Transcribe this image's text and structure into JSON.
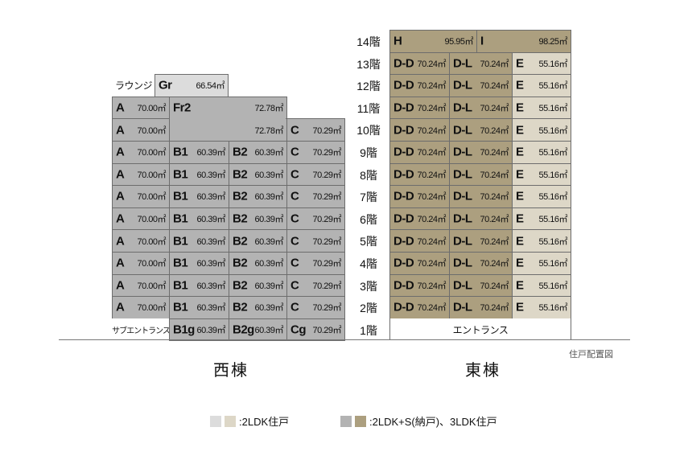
{
  "colors": {
    "west_2ldk": "#dcdcdc",
    "east_2ldk": "#ddd7c7",
    "west_3ldk": "#b3b3b3",
    "east_3ldk": "#ac9f7f",
    "blank": "#ffffff"
  },
  "floors": [
    "14階",
    "13階",
    "12階",
    "11階",
    "10階",
    "9階",
    "8階",
    "7階",
    "6階",
    "5階",
    "4階",
    "3階",
    "2階",
    "1階"
  ],
  "west_title": "西棟",
  "east_title": "東棟",
  "caption": "住戸配置図",
  "west": [
    {
      "floor": "12階",
      "units": [
        {
          "label": "ラウンジ",
          "type": "blank"
        },
        {
          "code": "Gr",
          "area": "66.54㎡",
          "type": "west_2ldk"
        }
      ]
    },
    {
      "floor": "11階",
      "units": [
        {
          "code": "A",
          "area": "70.00㎡",
          "type": "west_3ldk"
        },
        {
          "code": "Fr2",
          "area": "72.78㎡",
          "type": "west_3ldk"
        }
      ]
    },
    {
      "floor": "10階",
      "units": [
        {
          "code": "A",
          "area": "70.00㎡",
          "type": "west_3ldk"
        },
        {
          "code": "",
          "area": "72.78㎡",
          "type": "west_3ldk"
        },
        {
          "code": "C",
          "area": "70.29㎡",
          "type": "west_3ldk"
        }
      ]
    },
    {
      "floor": "9階",
      "units": [
        {
          "code": "A",
          "area": "70.00㎡",
          "type": "west_3ldk"
        },
        {
          "code": "B1",
          "area": "60.39㎡",
          "type": "west_3ldk"
        },
        {
          "code": "B2",
          "area": "60.39㎡",
          "type": "west_3ldk"
        },
        {
          "code": "C",
          "area": "70.29㎡",
          "type": "west_3ldk"
        }
      ]
    },
    {
      "floor": "8階",
      "units": [
        {
          "code": "A",
          "area": "70.00㎡",
          "type": "west_3ldk"
        },
        {
          "code": "B1",
          "area": "60.39㎡",
          "type": "west_3ldk"
        },
        {
          "code": "B2",
          "area": "60.39㎡",
          "type": "west_3ldk"
        },
        {
          "code": "C",
          "area": "70.29㎡",
          "type": "west_3ldk"
        }
      ]
    },
    {
      "floor": "7階",
      "units": [
        {
          "code": "A",
          "area": "70.00㎡",
          "type": "west_3ldk"
        },
        {
          "code": "B1",
          "area": "60.39㎡",
          "type": "west_3ldk"
        },
        {
          "code": "B2",
          "area": "60.39㎡",
          "type": "west_3ldk"
        },
        {
          "code": "C",
          "area": "70.29㎡",
          "type": "west_3ldk"
        }
      ]
    },
    {
      "floor": "6階",
      "units": [
        {
          "code": "A",
          "area": "70.00㎡",
          "type": "west_3ldk"
        },
        {
          "code": "B1",
          "area": "60.39㎡",
          "type": "west_3ldk"
        },
        {
          "code": "B2",
          "area": "60.39㎡",
          "type": "west_3ldk"
        },
        {
          "code": "C",
          "area": "70.29㎡",
          "type": "west_3ldk"
        }
      ]
    },
    {
      "floor": "5階",
      "units": [
        {
          "code": "A",
          "area": "70.00㎡",
          "type": "west_3ldk"
        },
        {
          "code": "B1",
          "area": "60.39㎡",
          "type": "west_3ldk"
        },
        {
          "code": "B2",
          "area": "60.39㎡",
          "type": "west_3ldk"
        },
        {
          "code": "C",
          "area": "70.29㎡",
          "type": "west_3ldk"
        }
      ]
    },
    {
      "floor": "4階",
      "units": [
        {
          "code": "A",
          "area": "70.00㎡",
          "type": "west_3ldk"
        },
        {
          "code": "B1",
          "area": "60.39㎡",
          "type": "west_3ldk"
        },
        {
          "code": "B2",
          "area": "60.39㎡",
          "type": "west_3ldk"
        },
        {
          "code": "C",
          "area": "70.29㎡",
          "type": "west_3ldk"
        }
      ]
    },
    {
      "floor": "3階",
      "units": [
        {
          "code": "A",
          "area": "70.00㎡",
          "type": "west_3ldk"
        },
        {
          "code": "B1",
          "area": "60.39㎡",
          "type": "west_3ldk"
        },
        {
          "code": "B2",
          "area": "60.39㎡",
          "type": "west_3ldk"
        },
        {
          "code": "C",
          "area": "70.29㎡",
          "type": "west_3ldk"
        }
      ]
    },
    {
      "floor": "2階",
      "units": [
        {
          "code": "A",
          "area": "70.00㎡",
          "type": "west_3ldk"
        },
        {
          "code": "B1",
          "area": "60.39㎡",
          "type": "west_3ldk"
        },
        {
          "code": "B2",
          "area": "60.39㎡",
          "type": "west_3ldk"
        },
        {
          "code": "C",
          "area": "70.29㎡",
          "type": "west_3ldk"
        }
      ]
    },
    {
      "floor": "1階",
      "units": [
        {
          "label": "サブエントランス",
          "type": "blank"
        },
        {
          "code": "B1g",
          "area": "60.39㎡",
          "type": "west_3ldk"
        },
        {
          "code": "B2g",
          "area": "60.39㎡",
          "type": "west_3ldk"
        },
        {
          "code": "Cg",
          "area": "70.29㎡",
          "type": "west_3ldk"
        }
      ]
    }
  ],
  "east": [
    {
      "floor": "14階",
      "units": [
        {
          "code": "H",
          "area": "95.95㎡",
          "type": "east_3ldk"
        },
        {
          "code": "I",
          "area": "98.25㎡",
          "type": "east_3ldk"
        }
      ]
    },
    {
      "floor": "13階",
      "units": [
        {
          "code": "D-D",
          "area": "70.24㎡",
          "type": "east_3ldk"
        },
        {
          "code": "D-L",
          "area": "70.24㎡",
          "type": "east_3ldk"
        },
        {
          "code": "E",
          "area": "55.16㎡",
          "type": "east_2ldk"
        }
      ]
    },
    {
      "floor": "12階",
      "units": [
        {
          "code": "D-D",
          "area": "70.24㎡",
          "type": "east_3ldk"
        },
        {
          "code": "D-L",
          "area": "70.24㎡",
          "type": "east_3ldk"
        },
        {
          "code": "E",
          "area": "55.16㎡",
          "type": "east_2ldk"
        }
      ]
    },
    {
      "floor": "11階",
      "units": [
        {
          "code": "D-D",
          "area": "70.24㎡",
          "type": "east_3ldk"
        },
        {
          "code": "D-L",
          "area": "70.24㎡",
          "type": "east_3ldk"
        },
        {
          "code": "E",
          "area": "55.16㎡",
          "type": "east_2ldk"
        }
      ]
    },
    {
      "floor": "10階",
      "units": [
        {
          "code": "D-D",
          "area": "70.24㎡",
          "type": "east_3ldk"
        },
        {
          "code": "D-L",
          "area": "70.24㎡",
          "type": "east_3ldk"
        },
        {
          "code": "E",
          "area": "55.16㎡",
          "type": "east_2ldk"
        }
      ]
    },
    {
      "floor": "9階",
      "units": [
        {
          "code": "D-D",
          "area": "70.24㎡",
          "type": "east_3ldk"
        },
        {
          "code": "D-L",
          "area": "70.24㎡",
          "type": "east_3ldk"
        },
        {
          "code": "E",
          "area": "55.16㎡",
          "type": "east_2ldk"
        }
      ]
    },
    {
      "floor": "8階",
      "units": [
        {
          "code": "D-D",
          "area": "70.24㎡",
          "type": "east_3ldk"
        },
        {
          "code": "D-L",
          "area": "70.24㎡",
          "type": "east_3ldk"
        },
        {
          "code": "E",
          "area": "55.16㎡",
          "type": "east_2ldk"
        }
      ]
    },
    {
      "floor": "7階",
      "units": [
        {
          "code": "D-D",
          "area": "70.24㎡",
          "type": "east_3ldk"
        },
        {
          "code": "D-L",
          "area": "70.24㎡",
          "type": "east_3ldk"
        },
        {
          "code": "E",
          "area": "55.16㎡",
          "type": "east_2ldk"
        }
      ]
    },
    {
      "floor": "6階",
      "units": [
        {
          "code": "D-D",
          "area": "70.24㎡",
          "type": "east_3ldk"
        },
        {
          "code": "D-L",
          "area": "70.24㎡",
          "type": "east_3ldk"
        },
        {
          "code": "E",
          "area": "55.16㎡",
          "type": "east_2ldk"
        }
      ]
    },
    {
      "floor": "5階",
      "units": [
        {
          "code": "D-D",
          "area": "70.24㎡",
          "type": "east_3ldk"
        },
        {
          "code": "D-L",
          "area": "70.24㎡",
          "type": "east_3ldk"
        },
        {
          "code": "E",
          "area": "55.16㎡",
          "type": "east_2ldk"
        }
      ]
    },
    {
      "floor": "4階",
      "units": [
        {
          "code": "D-D",
          "area": "70.24㎡",
          "type": "east_3ldk"
        },
        {
          "code": "D-L",
          "area": "70.24㎡",
          "type": "east_3ldk"
        },
        {
          "code": "E",
          "area": "55.16㎡",
          "type": "east_2ldk"
        }
      ]
    },
    {
      "floor": "3階",
      "units": [
        {
          "code": "D-D",
          "area": "70.24㎡",
          "type": "east_3ldk"
        },
        {
          "code": "D-L",
          "area": "70.24㎡",
          "type": "east_3ldk"
        },
        {
          "code": "E",
          "area": "55.16㎡",
          "type": "east_2ldk"
        }
      ]
    },
    {
      "floor": "2階",
      "units": [
        {
          "code": "D-D",
          "area": "70.24㎡",
          "type": "east_3ldk"
        },
        {
          "code": "D-L",
          "area": "70.24㎡",
          "type": "east_3ldk"
        },
        {
          "code": "E",
          "area": "55.16㎡",
          "type": "east_2ldk"
        }
      ]
    },
    {
      "floor": "1階",
      "units": [
        {
          "label": "エントランス",
          "type": "blank"
        }
      ]
    }
  ],
  "legend": [
    {
      "label": ":2LDK住戸",
      "swatches": [
        "west_2ldk",
        "east_2ldk"
      ]
    },
    {
      "label": ":2LDK+S(納戸)、3LDK住戸",
      "swatches": [
        "west_3ldk",
        "east_3ldk"
      ]
    }
  ]
}
